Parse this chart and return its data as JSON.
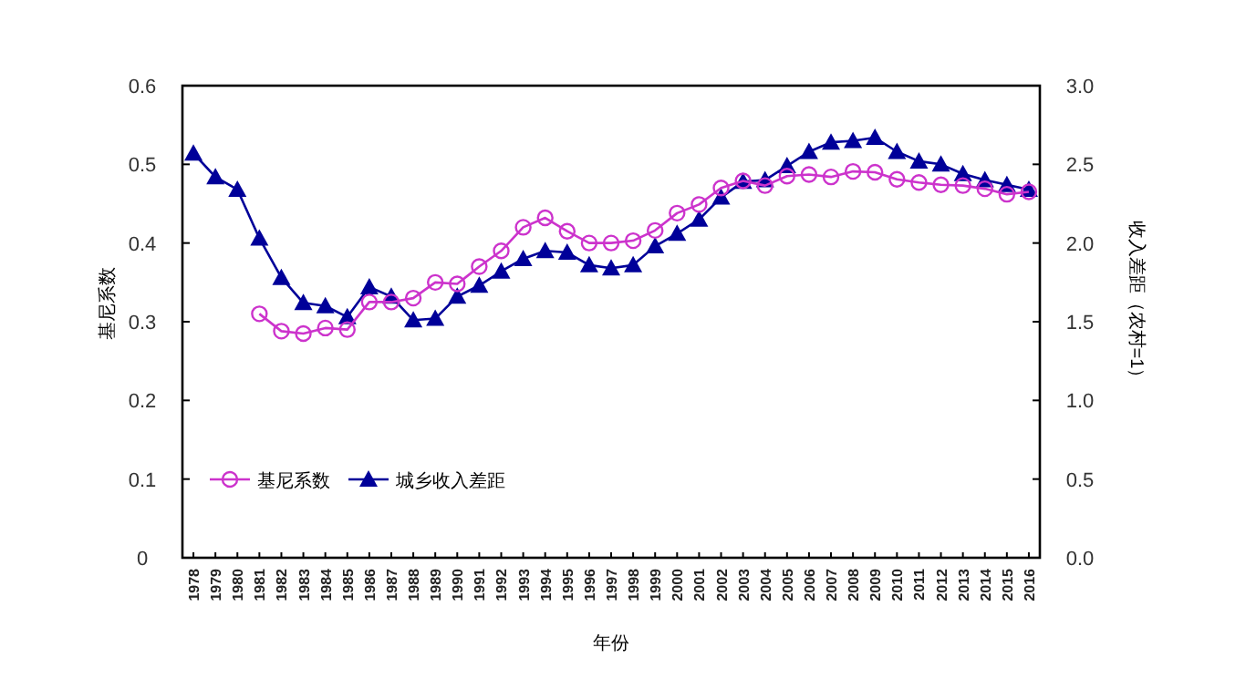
{
  "chart_data": {
    "type": "line",
    "xlabel": "年份",
    "ylabel": "基尼系数",
    "y2label": "收入差距（农村=1）",
    "categories": [
      "1978",
      "1979",
      "1980",
      "1981",
      "1982",
      "1983",
      "1984",
      "1985",
      "1986",
      "1987",
      "1988",
      "1989",
      "1990",
      "1991",
      "1992",
      "1993",
      "1994",
      "1995",
      "1996",
      "1997",
      "1998",
      "1999",
      "2000",
      "2001",
      "2002",
      "2003",
      "2004",
      "2005",
      "2006",
      "2007",
      "2008",
      "2009",
      "2010",
      "2011",
      "2012",
      "2013",
      "2014",
      "2015",
      "2016"
    ],
    "series": [
      {
        "name": "基尼系数",
        "color": "#cc33cc",
        "marker": "circle",
        "values": [
          null,
          null,
          null,
          0.31,
          0.288,
          0.285,
          0.292,
          0.29,
          0.325,
          0.325,
          0.33,
          0.35,
          0.348,
          0.37,
          0.39,
          0.42,
          0.432,
          0.415,
          0.4,
          0.4,
          0.403,
          0.416,
          0.438,
          0.449,
          0.47,
          0.479,
          0.473,
          0.485,
          0.487,
          0.484,
          0.491,
          0.49,
          0.481,
          0.477,
          0.474,
          0.473,
          0.469,
          0.462,
          0.465
        ]
      },
      {
        "name": "城乡收入差距",
        "color": "#000099",
        "marker": "triangle",
        "axis": "y2",
        "values": [
          2.57,
          2.42,
          2.34,
          2.03,
          1.78,
          1.62,
          1.6,
          1.53,
          1.72,
          1.66,
          1.51,
          1.52,
          1.66,
          1.73,
          1.82,
          1.9,
          1.95,
          1.94,
          1.86,
          1.84,
          1.86,
          1.98,
          2.06,
          2.15,
          2.29,
          2.39,
          2.4,
          2.49,
          2.58,
          2.64,
          2.65,
          2.67,
          2.58,
          2.52,
          2.5,
          2.44,
          2.4,
          2.37,
          2.34
        ]
      }
    ],
    "ylim": [
      0,
      0.6
    ],
    "yticks": [
      0,
      0.1,
      0.2,
      0.3,
      0.4,
      0.5,
      0.6
    ],
    "y2lim": [
      0,
      3
    ],
    "y2ticks": [
      {
        "value": 0,
        "label": "0.0"
      },
      0.5,
      {
        "value": 1,
        "label": "1.0"
      },
      1.5,
      {
        "value": 2,
        "label": "2.0"
      },
      2.5,
      {
        "value": 3,
        "label": "3.0"
      }
    ],
    "grid": false,
    "legend": "bottom left"
  }
}
